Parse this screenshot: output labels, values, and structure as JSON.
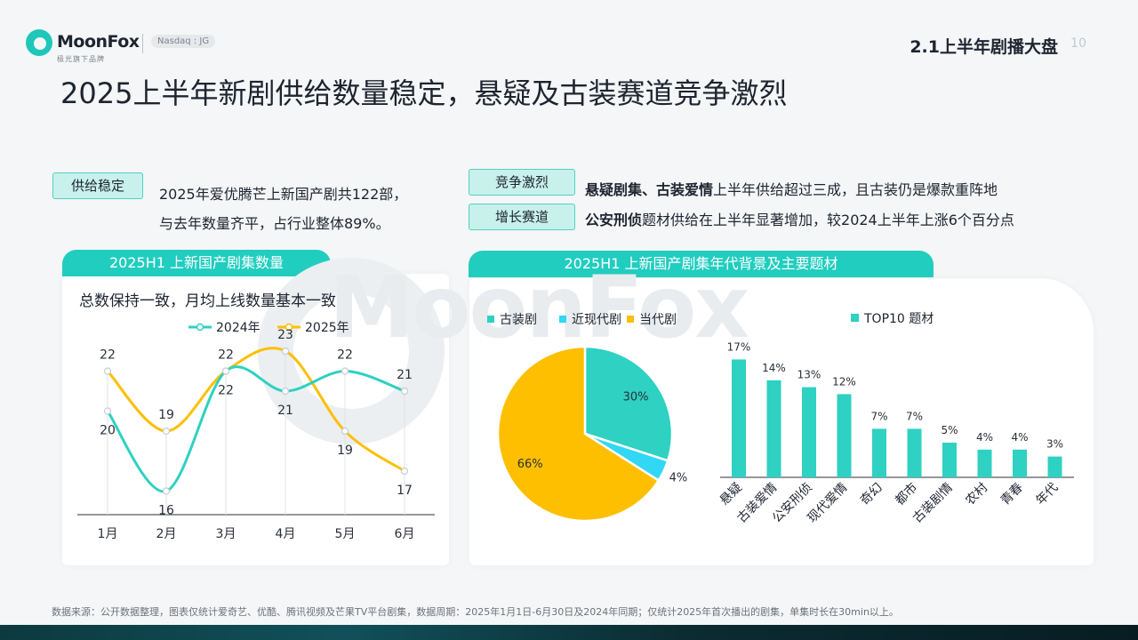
{
  "header": {
    "brand": "MoonFox",
    "brand_sub": "极光旗下品牌",
    "exchange": "Nasdaq : JG",
    "section": "2.1上半年剧播大盘",
    "page_number": "10"
  },
  "title": "2025上半年新剧供给数量稳定，悬疑及古装赛道竞争激烈",
  "highlights": {
    "supply": {
      "tag": "供给稳定",
      "line1": "2025年爱优腾芒上新国产剧共122部，",
      "line2": "与去年数量齐平，占行业整体89%。"
    },
    "competition": {
      "tag": "竞争激烈",
      "bold": "悬疑剧集、古装爱情",
      "text": "上半年供给超过三成，且古装仍是爆款重阵地"
    },
    "growth": {
      "tag": "增长赛道",
      "bold": "公安刑侦",
      "text": "题材供给在上半年显著增加，较2024上半年上涨6个百分点"
    }
  },
  "left_card": {
    "tab": "2025H1  上新国产剧集数量",
    "subtitle": "总数保持一致，月均上线数量基本一致"
  },
  "right_card": {
    "tab": "2025H1  上新国产剧集年代背景及主要题材"
  },
  "watermark": "MoonFox",
  "footnote": "数据来源：公开数据整理，图表仅统计爱奇艺、优酷、腾讯视频及芒果TV平台剧集，数据周期：2025年1月1日-6月30日及2024年同期；仅统计2025年首次播出的剧集，单集时长在30min以上。",
  "colors": {
    "teal": "#2ed1c2",
    "yellow": "#fdbf00",
    "cyan": "#32d7f5",
    "tab": "#21cdbf"
  },
  "chart_data": [
    {
      "type": "line",
      "categories": [
        "1月",
        "2月",
        "3月",
        "4月",
        "5月",
        "6月"
      ],
      "series": [
        {
          "name": "2024年",
          "values": [
            20,
            16,
            22,
            21,
            22,
            21
          ],
          "color": "#2ed1c2"
        },
        {
          "name": "2025年",
          "values": [
            22,
            19,
            22,
            23,
            19,
            17
          ],
          "color": "#fdbf00"
        }
      ],
      "legend": "top-center",
      "grid": false
    },
    {
      "type": "pie",
      "labels": [
        "古装剧",
        "近现代剧",
        "当代剧"
      ],
      "values": [
        30,
        4,
        66
      ],
      "value_labels": [
        "30%",
        "4%",
        "66%"
      ],
      "colors": [
        "#2ed1c2",
        "#32d7f5",
        "#fdbf00"
      ],
      "legend": "top-left"
    },
    {
      "type": "bar",
      "series_name": "TOP10 题材",
      "categories": [
        "悬疑",
        "古装爱情",
        "公安刑侦",
        "现代爱情",
        "奇幻",
        "都市",
        "古装剧情",
        "农村",
        "青春",
        "年代"
      ],
      "values": [
        17,
        14,
        13,
        12,
        7,
        7,
        5,
        4,
        4,
        3
      ],
      "value_labels": [
        "17%",
        "14%",
        "13%",
        "12%",
        "7%",
        "7%",
        "5%",
        "4%",
        "4%",
        "3%"
      ],
      "color": "#2ed1c2",
      "legend": "top-center"
    }
  ]
}
